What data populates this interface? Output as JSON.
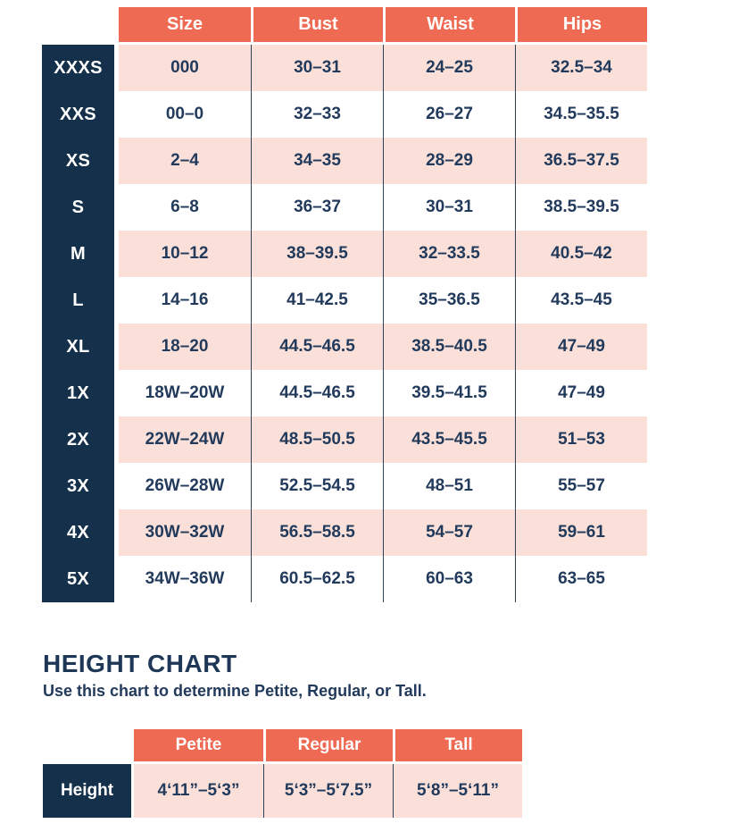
{
  "colors": {
    "coral": "#EE6A52",
    "navy": "#15304A",
    "pink": "#FBE0D9",
    "text_navy": "#223A5B"
  },
  "size_chart": {
    "columns": [
      "Size",
      "Bust",
      "Waist",
      "Hips"
    ],
    "rows": [
      {
        "label": "XXXS",
        "size": "000",
        "bust": "30–31",
        "waist": "24–25",
        "hips": "32.5–34"
      },
      {
        "label": "XXS",
        "size": "00–0",
        "bust": "32–33",
        "waist": "26–27",
        "hips": "34.5–35.5"
      },
      {
        "label": "XS",
        "size": "2–4",
        "bust": "34–35",
        "waist": "28–29",
        "hips": "36.5–37.5"
      },
      {
        "label": "S",
        "size": "6–8",
        "bust": "36–37",
        "waist": "30–31",
        "hips": "38.5–39.5"
      },
      {
        "label": "M",
        "size": "10–12",
        "bust": "38–39.5",
        "waist": "32–33.5",
        "hips": "40.5–42"
      },
      {
        "label": "L",
        "size": "14–16",
        "bust": "41–42.5",
        "waist": "35–36.5",
        "hips": "43.5–45"
      },
      {
        "label": "XL",
        "size": "18–20",
        "bust": "44.5–46.5",
        "waist": "38.5–40.5",
        "hips": "47–49"
      },
      {
        "label": "1X",
        "size": "18W–20W",
        "bust": "44.5–46.5",
        "waist": "39.5–41.5",
        "hips": "47–49"
      },
      {
        "label": "2X",
        "size": "22W–24W",
        "bust": "48.5–50.5",
        "waist": "43.5–45.5",
        "hips": "51–53"
      },
      {
        "label": "3X",
        "size": "26W–28W",
        "bust": "52.5–54.5",
        "waist": "48–51",
        "hips": "55–57"
      },
      {
        "label": "4X",
        "size": "30W–32W",
        "bust": "56.5–58.5",
        "waist": "54–57",
        "hips": "59–61"
      },
      {
        "label": "5X",
        "size": "34W–36W",
        "bust": "60.5–62.5",
        "waist": "60–63",
        "hips": "63–65"
      }
    ]
  },
  "height_section": {
    "title": "HEIGHT CHART",
    "subtitle": "Use this chart to determine Petite, Regular, or Tall.",
    "columns": [
      "Petite",
      "Regular",
      "Tall"
    ],
    "row_label": "Height",
    "values": [
      "4‘11”–5‘3”",
      "5‘3”–5‘7.5”",
      "5‘8”–5‘11”"
    ]
  }
}
